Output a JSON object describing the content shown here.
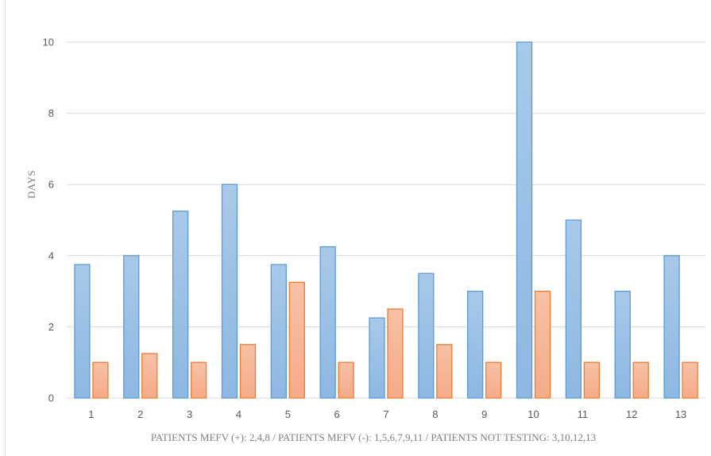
{
  "chart_data": {
    "type": "bar",
    "title": "",
    "xlabel": "PATIENTS MEFV (+): 2,4,8 / PATIENTS MEFV (-): 1,5,6,7,9,11 / PATIENTS NOT TESTING: 3,10,12,13",
    "ylabel": "DAYS",
    "ylim": [
      0,
      10
    ],
    "yticks": [
      0,
      2,
      4,
      6,
      8,
      10
    ],
    "grid": true,
    "categories": [
      "1",
      "2",
      "3",
      "4",
      "5",
      "6",
      "7",
      "8",
      "9",
      "10",
      "11",
      "12",
      "13"
    ],
    "series": [
      {
        "values": [
          3.75,
          4,
          5.25,
          6,
          3.75,
          4.25,
          2.25,
          3.5,
          3,
          10,
          5,
          3,
          4
        ]
      },
      {
        "values": [
          1,
          1.25,
          1,
          1.5,
          3.25,
          1,
          2.5,
          1.5,
          1,
          3,
          1,
          1,
          1
        ]
      }
    ],
    "colors": {
      "series1_fill": "#9dc3e6",
      "series1_stroke": "#5b9bd5",
      "series2_fill": "#f8b99c",
      "series2_stroke": "#ed7d31",
      "grid": "#d9d9d9"
    }
  }
}
